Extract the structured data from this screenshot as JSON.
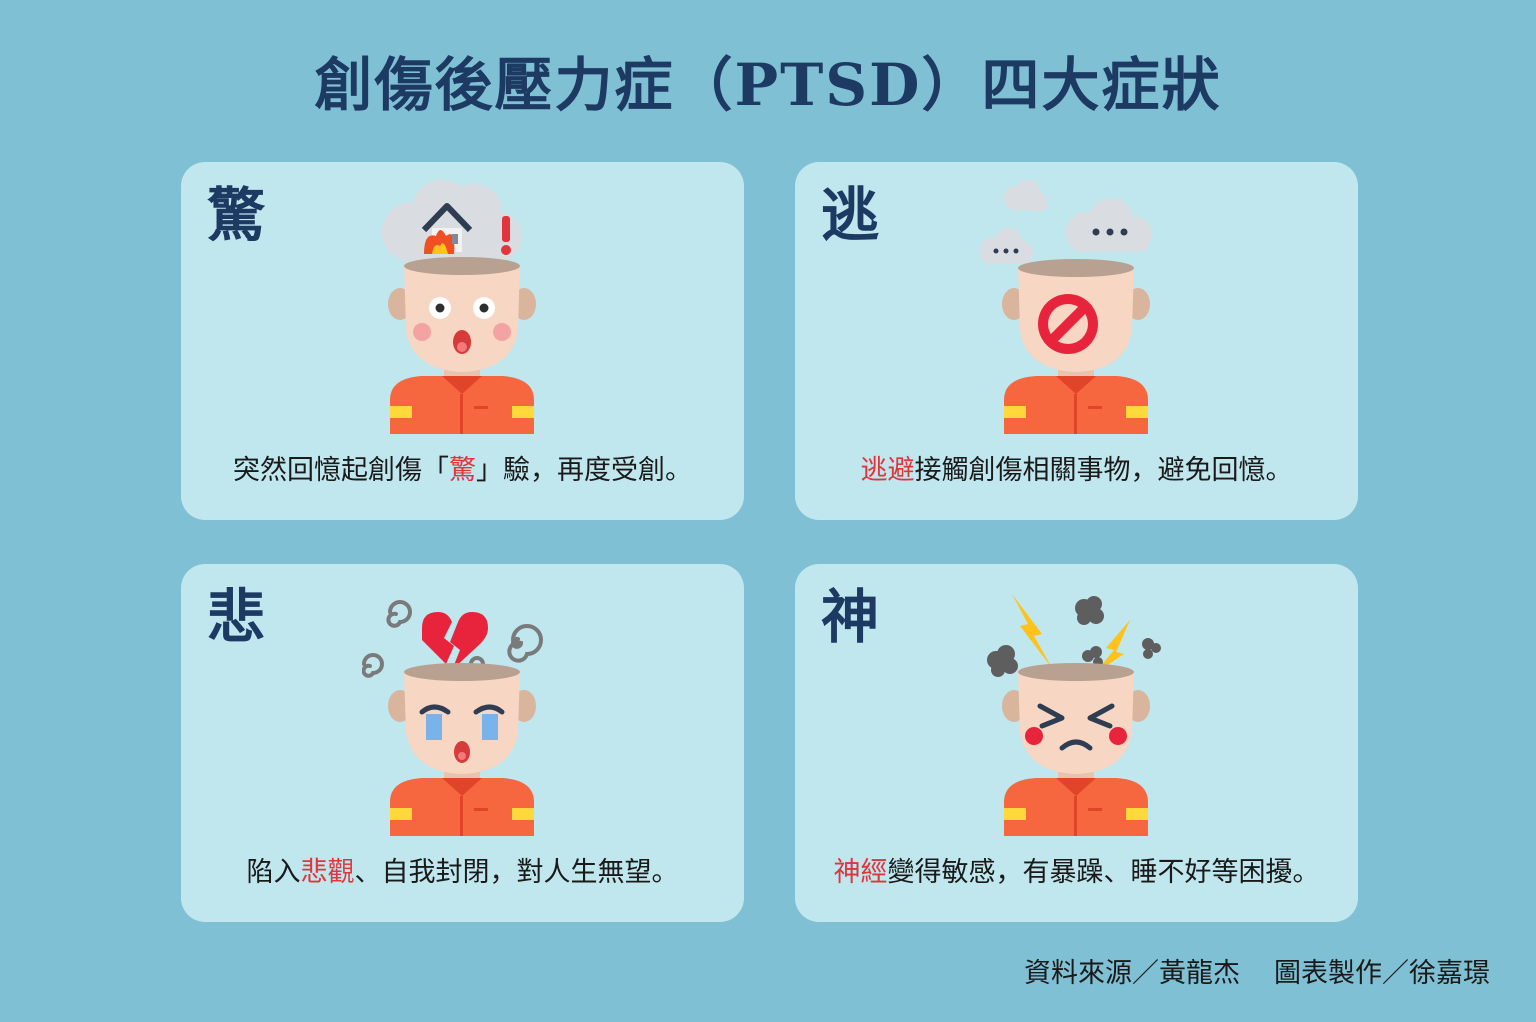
{
  "title": "創傷後壓力症（PTSD）四大症狀",
  "cards": [
    {
      "char": "驚",
      "caption_pre": "突然回憶起創傷「",
      "caption_hl": "驚",
      "caption_post": "」驗，再度受創。"
    },
    {
      "char": "逃",
      "caption_pre": "",
      "caption_hl": "逃避",
      "caption_post": "接觸創傷相關事物，避免回憶。"
    },
    {
      "char": "悲",
      "caption_pre": "陷入",
      "caption_hl": "悲觀",
      "caption_post": "、自我封閉，對人生無望。"
    },
    {
      "char": "神",
      "caption_pre": "",
      "caption_hl": "神經",
      "caption_post": "變得敏感，有暴躁、睡不好等困擾。"
    }
  ],
  "credits": {
    "source": "資料來源／黃龍杰",
    "design": "圖表製作／徐嘉璟"
  },
  "colors": {
    "background": "#80c0d4",
    "card": "#c0e6ee",
    "heading": "#1d3a63",
    "highlight": "#e2343b",
    "shirt": "#f7673f",
    "skin": "#f7d6c3"
  }
}
